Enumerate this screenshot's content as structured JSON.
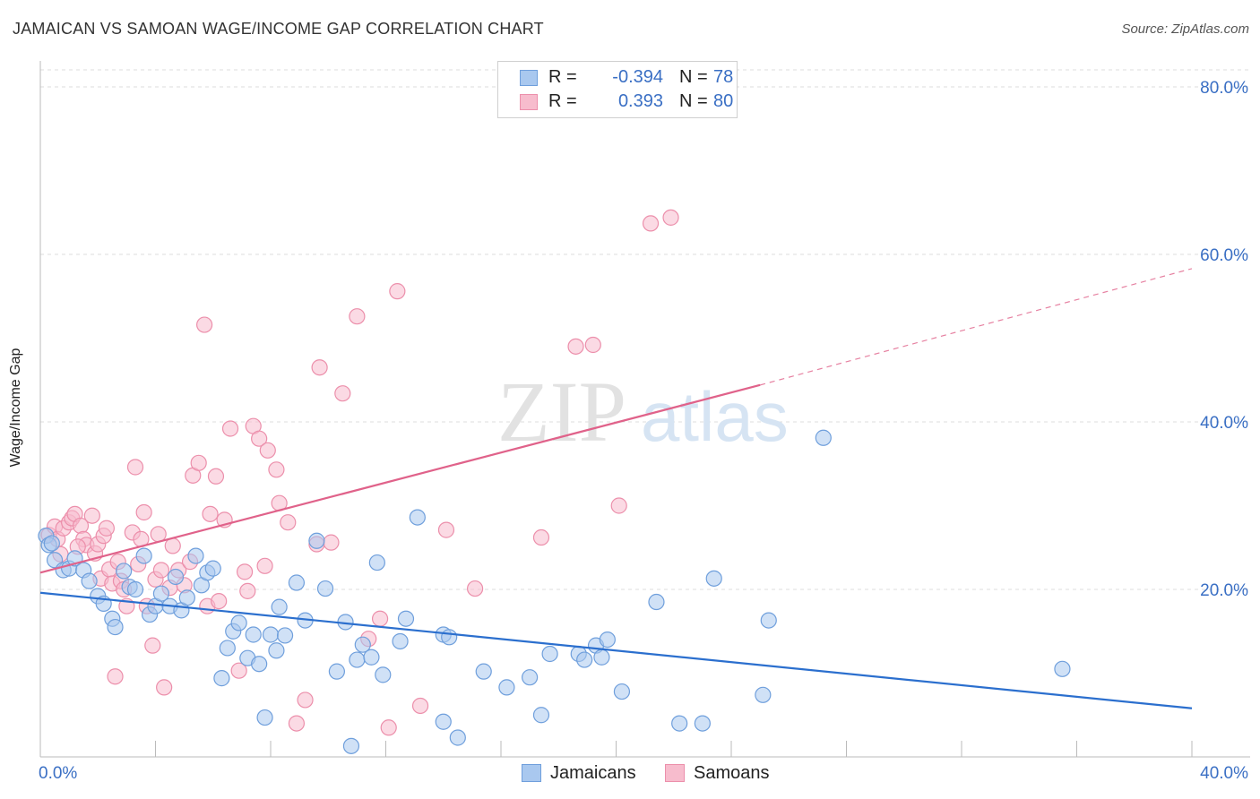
{
  "header": {
    "title": "JAMAICAN VS SAMOAN WAGE/INCOME GAP CORRELATION CHART",
    "source": "Source: ZipAtlas.com"
  },
  "legend": {
    "rows": [
      {
        "r_label": "R =",
        "r_value": "-0.394",
        "n_label": "N =",
        "n_value": "78"
      },
      {
        "r_label": "R =",
        "r_value": "0.393",
        "n_label": "N =",
        "n_value": "80"
      }
    ],
    "bottom": [
      "Jamaicans",
      "Samoans"
    ]
  },
  "watermark": {
    "zip": "ZIP",
    "atlas": "atlas"
  },
  "colors": {
    "jamaicans_fill": "#a9c8ef",
    "jamaicans_stroke": "#6f9fdc",
    "jamaicans_line": "#2b6fce",
    "samoans_fill": "#f7bccd",
    "samoans_stroke": "#ec8fab",
    "samoans_line": "#e0628a",
    "tick_label": "#3a6fc4",
    "grid": "#dddddd"
  },
  "chart_data": {
    "type": "scatter",
    "title": "JAMAICAN VS SAMOAN WAGE/INCOME GAP CORRELATION CHART",
    "xlabel": "",
    "ylabel": "Wage/Income Gap",
    "xlim": [
      0,
      40
    ],
    "ylim": [
      0,
      80
    ],
    "x_tick_labels": [
      "0.0%",
      "40.0%"
    ],
    "y_ticks": [
      20,
      40,
      60,
      80
    ],
    "y_tick_labels": [
      "20.0%",
      "40.0%",
      "60.0%",
      "80.0%"
    ],
    "grid": true,
    "legend_position": "top-center",
    "series": [
      {
        "name": "Jamaicans",
        "r": -0.394,
        "n": 78,
        "trend": {
          "x": [
            0,
            40
          ],
          "y": [
            19.6,
            5.8
          ],
          "dashed_from": null
        },
        "points": [
          [
            0.2,
            26.4
          ],
          [
            0.3,
            25.3
          ],
          [
            0.4,
            25.5
          ],
          [
            0.5,
            23.5
          ],
          [
            0.8,
            22.3
          ],
          [
            1.0,
            22.5
          ],
          [
            1.2,
            23.7
          ],
          [
            1.5,
            22.3
          ],
          [
            1.7,
            21.0
          ],
          [
            2.0,
            19.2
          ],
          [
            2.2,
            18.3
          ],
          [
            2.5,
            16.5
          ],
          [
            2.6,
            15.5
          ],
          [
            2.9,
            22.2
          ],
          [
            3.1,
            20.3
          ],
          [
            3.3,
            20.0
          ],
          [
            3.6,
            24.0
          ],
          [
            3.8,
            17.0
          ],
          [
            4.0,
            18.0
          ],
          [
            4.2,
            19.5
          ],
          [
            4.5,
            18.0
          ],
          [
            4.7,
            21.5
          ],
          [
            4.9,
            17.5
          ],
          [
            5.1,
            19.0
          ],
          [
            5.4,
            24.0
          ],
          [
            5.6,
            20.5
          ],
          [
            5.8,
            22.0
          ],
          [
            6.0,
            22.5
          ],
          [
            6.3,
            9.4
          ],
          [
            6.5,
            13.0
          ],
          [
            6.7,
            15.0
          ],
          [
            6.9,
            16.0
          ],
          [
            7.2,
            11.8
          ],
          [
            7.4,
            14.6
          ],
          [
            7.6,
            11.1
          ],
          [
            7.8,
            4.7
          ],
          [
            8.0,
            14.6
          ],
          [
            8.2,
            12.7
          ],
          [
            8.3,
            17.9
          ],
          [
            8.5,
            14.5
          ],
          [
            8.9,
            20.8
          ],
          [
            9.2,
            16.3
          ],
          [
            9.6,
            25.8
          ],
          [
            9.9,
            20.1
          ],
          [
            10.3,
            10.2
          ],
          [
            10.6,
            16.1
          ],
          [
            10.8,
            1.3
          ],
          [
            11.0,
            11.6
          ],
          [
            11.2,
            13.4
          ],
          [
            11.5,
            11.9
          ],
          [
            11.7,
            23.2
          ],
          [
            11.9,
            9.8
          ],
          [
            12.5,
            13.8
          ],
          [
            12.7,
            16.5
          ],
          [
            13.1,
            28.6
          ],
          [
            14.0,
            14.6
          ],
          [
            14.2,
            14.3
          ],
          [
            14.0,
            4.2
          ],
          [
            14.5,
            2.3
          ],
          [
            15.4,
            10.2
          ],
          [
            16.2,
            8.3
          ],
          [
            17.0,
            9.5
          ],
          [
            17.4,
            5.0
          ],
          [
            17.7,
            12.3
          ],
          [
            18.7,
            12.3
          ],
          [
            18.9,
            11.6
          ],
          [
            19.3,
            13.3
          ],
          [
            19.5,
            11.9
          ],
          [
            19.7,
            14.0
          ],
          [
            20.2,
            7.8
          ],
          [
            21.4,
            18.5
          ],
          [
            22.2,
            4.0
          ],
          [
            23.0,
            4.0
          ],
          [
            23.4,
            21.3
          ],
          [
            25.1,
            7.4
          ],
          [
            25.3,
            16.3
          ],
          [
            27.2,
            38.1
          ],
          [
            35.5,
            10.5
          ]
        ]
      },
      {
        "name": "Samoans",
        "r": 0.393,
        "n": 80,
        "trend": {
          "x": [
            0,
            25,
            40
          ],
          "y": [
            22.0,
            44.4,
            58.3
          ],
          "dashed_from": 25
        },
        "points": [
          [
            0.3,
            26.5
          ],
          [
            0.5,
            27.5
          ],
          [
            0.6,
            26.0
          ],
          [
            0.8,
            27.3
          ],
          [
            1.0,
            28.0
          ],
          [
            1.1,
            28.5
          ],
          [
            1.2,
            29.0
          ],
          [
            1.4,
            27.6
          ],
          [
            1.5,
            26.0
          ],
          [
            1.6,
            25.3
          ],
          [
            1.8,
            28.8
          ],
          [
            1.9,
            24.3
          ],
          [
            2.0,
            25.4
          ],
          [
            2.1,
            21.3
          ],
          [
            2.2,
            26.4
          ],
          [
            2.3,
            27.3
          ],
          [
            2.4,
            22.4
          ],
          [
            2.5,
            20.7
          ],
          [
            2.6,
            9.6
          ],
          [
            2.7,
            23.3
          ],
          [
            2.8,
            21.0
          ],
          [
            3.0,
            18.0
          ],
          [
            3.2,
            26.8
          ],
          [
            3.3,
            34.6
          ],
          [
            3.5,
            26.0
          ],
          [
            3.6,
            29.2
          ],
          [
            3.7,
            18.0
          ],
          [
            3.9,
            13.3
          ],
          [
            4.0,
            21.2
          ],
          [
            4.2,
            22.3
          ],
          [
            4.3,
            8.3
          ],
          [
            4.5,
            20.2
          ],
          [
            4.6,
            25.2
          ],
          [
            4.8,
            22.3
          ],
          [
            5.0,
            20.5
          ],
          [
            5.2,
            23.3
          ],
          [
            5.3,
            33.6
          ],
          [
            5.5,
            35.1
          ],
          [
            5.7,
            51.6
          ],
          [
            5.8,
            18.0
          ],
          [
            5.9,
            29.0
          ],
          [
            6.1,
            33.5
          ],
          [
            6.2,
            18.6
          ],
          [
            6.4,
            28.3
          ],
          [
            6.6,
            39.2
          ],
          [
            6.9,
            10.3
          ],
          [
            7.1,
            22.1
          ],
          [
            7.2,
            19.8
          ],
          [
            7.4,
            39.5
          ],
          [
            7.6,
            38.0
          ],
          [
            7.8,
            22.8
          ],
          [
            7.9,
            36.6
          ],
          [
            8.2,
            34.3
          ],
          [
            8.3,
            30.3
          ],
          [
            8.6,
            28.0
          ],
          [
            8.9,
            4.0
          ],
          [
            9.2,
            6.8
          ],
          [
            9.6,
            25.4
          ],
          [
            9.7,
            46.5
          ],
          [
            10.1,
            25.6
          ],
          [
            10.5,
            43.4
          ],
          [
            11.0,
            52.6
          ],
          [
            11.4,
            14.1
          ],
          [
            11.8,
            16.5
          ],
          [
            12.1,
            3.5
          ],
          [
            12.4,
            55.6
          ],
          [
            13.2,
            6.1
          ],
          [
            14.1,
            27.1
          ],
          [
            15.1,
            20.1
          ],
          [
            17.4,
            26.2
          ],
          [
            18.6,
            49.0
          ],
          [
            19.2,
            49.2
          ],
          [
            20.1,
            30.0
          ],
          [
            21.2,
            63.7
          ],
          [
            21.9,
            64.4
          ],
          [
            0.7,
            24.2
          ],
          [
            1.3,
            25.1
          ],
          [
            2.9,
            20.0
          ],
          [
            4.1,
            26.6
          ],
          [
            3.4,
            23.0
          ]
        ]
      }
    ]
  }
}
